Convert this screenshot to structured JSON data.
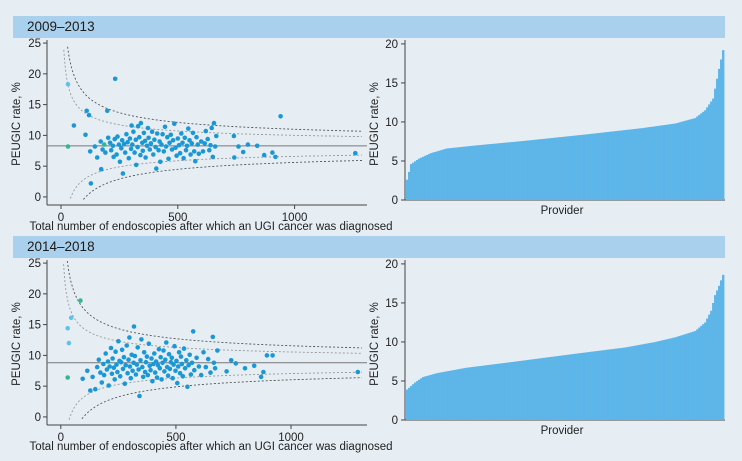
{
  "panels": [
    {
      "band_title": "2009–2013"
    },
    {
      "band_title": "2014–2018"
    }
  ],
  "colors": {
    "band": "#a9d1ee",
    "background": "#e6eef4",
    "point": "#1a97d5",
    "bar": "#5db5e8",
    "outlier_green": "#35b593",
    "outlier_light": "#5fc2e8"
  },
  "chart_data": [
    {
      "type": "scatter",
      "title": "2009–2013",
      "xlabel": "Total number of endoscopies after which an UGI cancer was diagnosed",
      "ylabel": "PEUGIC rate, %",
      "xlim": [
        -60,
        1310
      ],
      "ylim": [
        -0.5,
        25.5
      ],
      "xticks": [
        0,
        500,
        1000
      ],
      "yticks": [
        0,
        5,
        10,
        15,
        20,
        25
      ],
      "mean": 8.3,
      "points": [
        [
          30,
          18.3
        ],
        [
          30,
          8.2
        ],
        [
          55,
          11.6
        ],
        [
          105,
          10.1
        ],
        [
          110,
          14
        ],
        [
          120,
          13.3
        ],
        [
          125,
          7.4
        ],
        [
          128,
          2.2
        ],
        [
          145,
          8.2
        ],
        [
          155,
          6.4
        ],
        [
          170,
          9
        ],
        [
          172,
          4.5
        ],
        [
          178,
          7.7
        ],
        [
          185,
          8.5
        ],
        [
          190,
          7.2
        ],
        [
          198,
          14
        ],
        [
          202,
          9.6
        ],
        [
          210,
          8.8
        ],
        [
          215,
          7.6
        ],
        [
          222,
          8.3
        ],
        [
          225,
          6.5
        ],
        [
          230,
          9.4
        ],
        [
          232,
          19.2
        ],
        [
          238,
          6.9
        ],
        [
          242,
          9.8
        ],
        [
          248,
          8.5
        ],
        [
          252,
          5.7
        ],
        [
          258,
          7.9
        ],
        [
          262,
          9.2
        ],
        [
          265,
          3.8
        ],
        [
          270,
          8.6
        ],
        [
          275,
          7.2
        ],
        [
          280,
          10.2
        ],
        [
          285,
          8.9
        ],
        [
          290,
          6.3
        ],
        [
          295,
          9.5
        ],
        [
          300,
          7.8
        ],
        [
          302,
          11.6
        ],
        [
          305,
          8.5
        ],
        [
          310,
          10.6
        ],
        [
          315,
          7.2
        ],
        [
          320,
          9.3
        ],
        [
          322,
          5.2
        ],
        [
          328,
          8.1
        ],
        [
          330,
          11.5
        ],
        [
          335,
          9.7
        ],
        [
          340,
          6.8
        ],
        [
          342,
          12
        ],
        [
          348,
          8.8
        ],
        [
          350,
          7.5
        ],
        [
          355,
          10.4
        ],
        [
          360,
          9.1
        ],
        [
          362,
          6.4
        ],
        [
          368,
          8.3
        ],
        [
          372,
          11.2
        ],
        [
          375,
          9.6
        ],
        [
          380,
          7.7
        ],
        [
          385,
          8.7
        ],
        [
          390,
          10.6
        ],
        [
          395,
          6.9
        ],
        [
          400,
          9.3
        ],
        [
          405,
          8.1
        ],
        [
          408,
          4.6
        ],
        [
          412,
          10.3
        ],
        [
          418,
          7.6
        ],
        [
          422,
          9
        ],
        [
          425,
          5.7
        ],
        [
          430,
          8.5
        ],
        [
          435,
          10.2
        ],
        [
          440,
          7.4
        ],
        [
          445,
          11.4
        ],
        [
          450,
          8.2
        ],
        [
          455,
          9.7
        ],
        [
          460,
          6.2
        ],
        [
          465,
          8.8
        ],
        [
          470,
          10.1
        ],
        [
          475,
          7.7
        ],
        [
          480,
          9.2
        ],
        [
          485,
          11.9
        ],
        [
          490,
          8
        ],
        [
          495,
          6.7
        ],
        [
          500,
          9.5
        ],
        [
          505,
          8.4
        ],
        [
          510,
          7.1
        ],
        [
          515,
          10.3
        ],
        [
          520,
          8.8
        ],
        [
          525,
          6.3
        ],
        [
          530,
          9.6
        ],
        [
          535,
          7.6
        ],
        [
          540,
          8.3
        ],
        [
          545,
          11.1
        ],
        [
          550,
          9.2
        ],
        [
          555,
          6.9
        ],
        [
          560,
          8.7
        ],
        [
          565,
          10.4
        ],
        [
          570,
          7.4
        ],
        [
          575,
          5.8
        ],
        [
          580,
          9.7
        ],
        [
          585,
          8.5
        ],
        [
          590,
          7
        ],
        [
          600,
          9
        ],
        [
          608,
          7.4
        ],
        [
          615,
          8.7
        ],
        [
          620,
          10.7
        ],
        [
          628,
          9.4
        ],
        [
          635,
          7.6
        ],
        [
          640,
          8.4
        ],
        [
          645,
          11.2
        ],
        [
          650,
          6.5
        ],
        [
          655,
          12
        ],
        [
          660,
          8.2
        ],
        [
          665,
          9.9
        ],
        [
          740,
          9.9
        ],
        [
          742,
          6.4
        ],
        [
          760,
          8.2
        ],
        [
          780,
          7.3
        ],
        [
          800,
          8.5
        ],
        [
          840,
          8.3
        ],
        [
          870,
          6.8
        ],
        [
          905,
          7.2
        ],
        [
          918,
          6.5
        ],
        [
          940,
          13.1
        ],
        [
          1260,
          7.1
        ]
      ],
      "point_colors": {
        "0": "outlier_light",
        "1": "outlier_green",
        "13": "outlier_green"
      }
    },
    {
      "type": "bar",
      "title": "2009–2013",
      "xlabel": "Provider",
      "ylabel": "PEUGIC rate, %",
      "ylim": [
        0,
        20.5
      ],
      "yticks": [
        0,
        5,
        10,
        15,
        20
      ],
      "n_providers": 160,
      "sorted_values_profile": [
        [
          0,
          2.6
        ],
        [
          2,
          4.6
        ],
        [
          6,
          5.3
        ],
        [
          12,
          6
        ],
        [
          20,
          6.6
        ],
        [
          35,
          7
        ],
        [
          60,
          7.6
        ],
        [
          90,
          8.4
        ],
        [
          118,
          9.2
        ],
        [
          135,
          9.8
        ],
        [
          145,
          10.5
        ],
        [
          150,
          11.5
        ],
        [
          154,
          13
        ],
        [
          157,
          16.8
        ],
        [
          159,
          19.2
        ]
      ]
    },
    {
      "type": "scatter",
      "title": "2014–2018",
      "xlabel": "Total number of endoscopies after which an UGI cancer was diagnosed",
      "ylabel": "PEUGIC rate, %",
      "xlim": [
        -60,
        1330
      ],
      "ylim": [
        -0.5,
        25.5
      ],
      "xticks": [
        0,
        500,
        1000
      ],
      "yticks": [
        0,
        5,
        10,
        15,
        20,
        25
      ],
      "mean": 8.8,
      "points": [
        [
          30,
          14.4
        ],
        [
          30,
          6.4
        ],
        [
          35,
          12
        ],
        [
          45,
          16.1
        ],
        [
          85,
          18.9
        ],
        [
          95,
          6.2
        ],
        [
          115,
          7.5
        ],
        [
          128,
          4.3
        ],
        [
          138,
          6.5
        ],
        [
          150,
          4.5
        ],
        [
          158,
          8.1
        ],
        [
          165,
          9.3
        ],
        [
          172,
          7.2
        ],
        [
          178,
          5.6
        ],
        [
          185,
          8.6
        ],
        [
          188,
          6.8
        ],
        [
          195,
          10.3
        ],
        [
          200,
          7.7
        ],
        [
          205,
          9
        ],
        [
          208,
          5.1
        ],
        [
          212,
          8.2
        ],
        [
          218,
          11.2
        ],
        [
          222,
          7
        ],
        [
          225,
          9.5
        ],
        [
          230,
          8
        ],
        [
          234,
          6.1
        ],
        [
          238,
          10.6
        ],
        [
          242,
          8.5
        ],
        [
          246,
          7.3
        ],
        [
          250,
          12.3
        ],
        [
          255,
          9.1
        ],
        [
          258,
          6.6
        ],
        [
          262,
          8.9
        ],
        [
          266,
          10.9
        ],
        [
          270,
          7.8
        ],
        [
          274,
          9.7
        ],
        [
          278,
          5.4
        ],
        [
          282,
          8.4
        ],
        [
          286,
          11.6
        ],
        [
          290,
          7.1
        ],
        [
          294,
          9.3
        ],
        [
          298,
          12.9
        ],
        [
          300,
          8.2
        ],
        [
          304,
          6.3
        ],
        [
          308,
          10.1
        ],
        [
          312,
          7.5
        ],
        [
          316,
          8.8
        ],
        [
          318,
          14.7
        ],
        [
          322,
          9.9
        ],
        [
          326,
          6.9
        ],
        [
          330,
          8.5
        ],
        [
          334,
          11.3
        ],
        [
          338,
          7.7
        ],
        [
          342,
          3.4
        ],
        [
          346,
          9.2
        ],
        [
          350,
          12.6
        ],
        [
          354,
          8.1
        ],
        [
          358,
          6.5
        ],
        [
          362,
          10.5
        ],
        [
          366,
          7.3
        ],
        [
          370,
          8.9
        ],
        [
          374,
          9.8
        ],
        [
          378,
          6.8
        ],
        [
          382,
          11.9
        ],
        [
          386,
          8.3
        ],
        [
          390,
          7.6
        ],
        [
          394,
          9.5
        ],
        [
          398,
          5.8
        ],
        [
          402,
          8.6
        ],
        [
          406,
          10.3
        ],
        [
          410,
          7.2
        ],
        [
          414,
          9
        ],
        [
          418,
          6.4
        ],
        [
          422,
          8.4
        ],
        [
          426,
          11
        ],
        [
          430,
          7.9
        ],
        [
          434,
          9.7
        ],
        [
          438,
          6.1
        ],
        [
          442,
          8.8
        ],
        [
          446,
          10.8
        ],
        [
          450,
          7.4
        ],
        [
          454,
          9.3
        ],
        [
          458,
          12.1
        ],
        [
          462,
          8.1
        ],
        [
          466,
          6.7
        ],
        [
          470,
          10.2
        ],
        [
          474,
          7.8
        ],
        [
          478,
          8.9
        ],
        [
          482,
          9.6
        ],
        [
          486,
          6.3
        ],
        [
          490,
          8.5
        ],
        [
          494,
          11.5
        ],
        [
          498,
          7.5
        ],
        [
          502,
          9.1
        ],
        [
          506,
          5.5
        ],
        [
          510,
          8.2
        ],
        [
          514,
          10.5
        ],
        [
          518,
          7.1
        ],
        [
          522,
          9.8
        ],
        [
          526,
          8.6
        ],
        [
          530,
          6.6
        ],
        [
          535,
          11.1
        ],
        [
          540,
          7.9
        ],
        [
          545,
          9.2
        ],
        [
          550,
          4.9
        ],
        [
          555,
          8.4
        ],
        [
          560,
          10.1
        ],
        [
          565,
          6.9
        ],
        [
          570,
          8.8
        ],
        [
          575,
          13.9
        ],
        [
          580,
          7.6
        ],
        [
          590,
          9.6
        ],
        [
          600,
          8.2
        ],
        [
          610,
          6.8
        ],
        [
          620,
          10.5
        ],
        [
          630,
          8.1
        ],
        [
          640,
          9.4
        ],
        [
          650,
          7.2
        ],
        [
          660,
          13
        ],
        [
          665,
          8.8
        ],
        [
          670,
          7.9
        ],
        [
          680,
          10.8
        ],
        [
          720,
          7.4
        ],
        [
          740,
          9.2
        ],
        [
          760,
          8.7
        ],
        [
          800,
          7.9
        ],
        [
          840,
          8.3
        ],
        [
          870,
          6.5
        ],
        [
          880,
          7.3
        ],
        [
          895,
          10
        ],
        [
          920,
          10
        ],
        [
          1290,
          7.3
        ]
      ],
      "point_colors": {
        "0": "outlier_light",
        "1": "outlier_green",
        "2": "outlier_light",
        "3": "outlier_light",
        "4": "outlier_green"
      }
    },
    {
      "type": "bar",
      "title": "2014–2018",
      "xlabel": "Provider",
      "ylabel": "PEUGIC rate, %",
      "ylim": [
        0,
        20.5
      ],
      "yticks": [
        0,
        5,
        10,
        15,
        20
      ],
      "n_providers": 160,
      "sorted_values_profile": [
        [
          0,
          3.9
        ],
        [
          4,
          4.8
        ],
        [
          8,
          5.5
        ],
        [
          15,
          6
        ],
        [
          30,
          6.7
        ],
        [
          55,
          7.5
        ],
        [
          85,
          8.5
        ],
        [
          110,
          9.3
        ],
        [
          125,
          10
        ],
        [
          135,
          10.6
        ],
        [
          145,
          11.4
        ],
        [
          150,
          12.5
        ],
        [
          153,
          14
        ],
        [
          155,
          16
        ],
        [
          157,
          17.2
        ],
        [
          159,
          18.6
        ]
      ]
    }
  ]
}
